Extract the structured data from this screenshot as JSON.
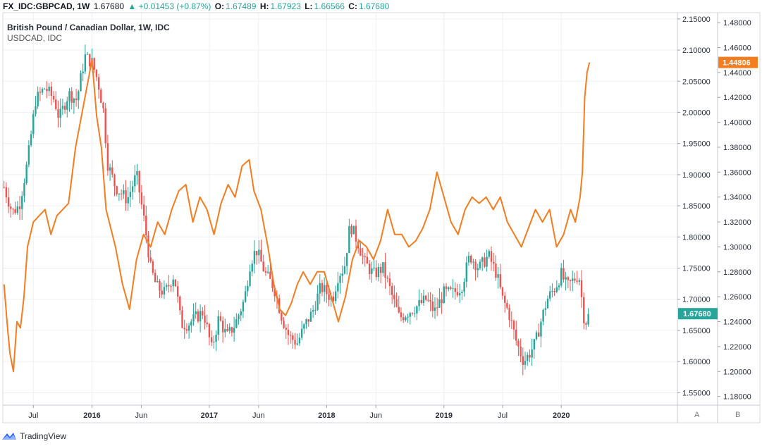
{
  "header": {
    "symbol": "FX_IDC:GBPCAD, 1W",
    "last": "1.67680",
    "change": "▲ +0.01453 (+0.87%)",
    "o_label": "O:",
    "o_value": "1.67489",
    "h_label": "H:",
    "h_value": "1.67923",
    "l_label": "L:",
    "l_value": "1.66566",
    "c_label": "C:",
    "c_value": "1.67680"
  },
  "legend": {
    "main": "British Pound / Canadian Dollar, 1W, IDC",
    "overlay": "USDCAD, IDC"
  },
  "axis_buttons": {
    "a": "A",
    "b": "B"
  },
  "footer": {
    "brand": "TradingView"
  },
  "colors": {
    "up": "#26a69a",
    "down": "#ef5350",
    "line": "#f57c1f",
    "grid": "#eef0f4",
    "border": "#c8cbd2"
  },
  "chart_data": {
    "type": "candlestick+line",
    "title": "British Pound / Canadian Dollar, 1W, IDC",
    "primary_series": {
      "name": "GBPCAD",
      "scale": "right-inner",
      "ylim": [
        1.53,
        2.16
      ],
      "yticks": [
        "2.15000",
        "2.10000",
        "2.05000",
        "2.00000",
        "1.95000",
        "1.90000",
        "1.85000",
        "1.80000",
        "1.75000",
        "1.70000",
        "1.65000",
        "1.60000",
        "1.55000"
      ],
      "last_value": "1.67680",
      "path_points": [
        [
          2015.25,
          1.88
        ],
        [
          2015.32,
          1.84
        ],
        [
          2015.38,
          1.85
        ],
        [
          2015.45,
          1.92
        ],
        [
          2015.52,
          2.02
        ],
        [
          2015.6,
          2.04
        ],
        [
          2015.68,
          2.02
        ],
        [
          2015.72,
          1.99
        ],
        [
          2015.8,
          2.03
        ],
        [
          2015.87,
          2.02
        ],
        [
          2015.94,
          2.09
        ],
        [
          2016.0,
          2.08
        ],
        [
          2016.05,
          2.05
        ],
        [
          2016.1,
          2.0
        ],
        [
          2016.13,
          1.92
        ],
        [
          2016.2,
          1.88
        ],
        [
          2016.3,
          1.86
        ],
        [
          2016.38,
          1.9
        ],
        [
          2016.45,
          1.82
        ],
        [
          2016.5,
          1.75
        ],
        [
          2016.55,
          1.72
        ],
        [
          2016.62,
          1.71
        ],
        [
          2016.7,
          1.74
        ],
        [
          2016.76,
          1.66
        ],
        [
          2016.82,
          1.66
        ],
        [
          2016.88,
          1.67
        ],
        [
          2016.95,
          1.68
        ],
        [
          2017.02,
          1.62
        ],
        [
          2017.08,
          1.67
        ],
        [
          2017.15,
          1.64
        ],
        [
          2017.22,
          1.66
        ],
        [
          2017.3,
          1.7
        ],
        [
          2017.35,
          1.76
        ],
        [
          2017.4,
          1.78
        ],
        [
          2017.48,
          1.74
        ],
        [
          2017.55,
          1.72
        ],
        [
          2017.62,
          1.67
        ],
        [
          2017.68,
          1.64
        ],
        [
          2017.75,
          1.63
        ],
        [
          2017.82,
          1.66
        ],
        [
          2017.88,
          1.68
        ],
        [
          2017.95,
          1.72
        ],
        [
          2018.0,
          1.71
        ],
        [
          2018.05,
          1.7
        ],
        [
          2018.1,
          1.74
        ],
        [
          2018.15,
          1.75
        ],
        [
          2018.2,
          1.82
        ],
        [
          2018.27,
          1.79
        ],
        [
          2018.32,
          1.76
        ],
        [
          2018.4,
          1.74
        ],
        [
          2018.48,
          1.75
        ],
        [
          2018.55,
          1.71
        ],
        [
          2018.62,
          1.67
        ],
        [
          2018.7,
          1.68
        ],
        [
          2018.78,
          1.69
        ],
        [
          2018.85,
          1.7
        ],
        [
          2018.92,
          1.68
        ],
        [
          2019.0,
          1.71
        ],
        [
          2019.08,
          1.71
        ],
        [
          2019.15,
          1.72
        ],
        [
          2019.22,
          1.77
        ],
        [
          2019.3,
          1.75
        ],
        [
          2019.38,
          1.77
        ],
        [
          2019.45,
          1.74
        ],
        [
          2019.5,
          1.7
        ],
        [
          2019.55,
          1.68
        ],
        [
          2019.62,
          1.63
        ],
        [
          2019.68,
          1.6
        ],
        [
          2019.72,
          1.61
        ],
        [
          2019.78,
          1.63
        ],
        [
          2019.82,
          1.66
        ],
        [
          2019.88,
          1.7
        ],
        [
          2019.95,
          1.72
        ],
        [
          2020.0,
          1.74
        ],
        [
          2020.05,
          1.72
        ],
        [
          2020.1,
          1.73
        ],
        [
          2020.15,
          1.74
        ],
        [
          2020.2,
          1.66
        ],
        [
          2020.24,
          1.6768
        ]
      ]
    },
    "overlay_series": {
      "name": "USDCAD",
      "scale": "right-outer",
      "ylim": [
        1.173,
        1.488
      ],
      "yticks": [
        "1.48000",
        "1.46000",
        "1.44000",
        "1.42000",
        "1.40000",
        "1.38000",
        "1.36000",
        "1.34000",
        "1.32000",
        "1.30000",
        "1.28000",
        "1.26000",
        "1.24000",
        "1.22000",
        "1.20000",
        "1.18000"
      ],
      "last_value": "1.44806",
      "points": [
        [
          2015.25,
          1.27
        ],
        [
          2015.28,
          1.235
        ],
        [
          2015.3,
          1.215
        ],
        [
          2015.33,
          1.2
        ],
        [
          2015.36,
          1.24
        ],
        [
          2015.39,
          1.235
        ],
        [
          2015.42,
          1.26
        ],
        [
          2015.45,
          1.3
        ],
        [
          2015.5,
          1.32
        ],
        [
          2015.55,
          1.325
        ],
        [
          2015.6,
          1.33
        ],
        [
          2015.65,
          1.31
        ],
        [
          2015.7,
          1.325
        ],
        [
          2015.75,
          1.33
        ],
        [
          2015.8,
          1.335
        ],
        [
          2015.86,
          1.38
        ],
        [
          2015.92,
          1.41
        ],
        [
          2016.0,
          1.45
        ],
        [
          2016.04,
          1.405
        ],
        [
          2016.08,
          1.38
        ],
        [
          2016.12,
          1.33
        ],
        [
          2016.2,
          1.3
        ],
        [
          2016.26,
          1.27
        ],
        [
          2016.32,
          1.25
        ],
        [
          2016.38,
          1.29
        ],
        [
          2016.44,
          1.31
        ],
        [
          2016.5,
          1.3
        ],
        [
          2016.56,
          1.32
        ],
        [
          2016.62,
          1.31
        ],
        [
          2016.68,
          1.33
        ],
        [
          2016.74,
          1.345
        ],
        [
          2016.8,
          1.35
        ],
        [
          2016.86,
          1.32
        ],
        [
          2016.92,
          1.34
        ],
        [
          2016.98,
          1.33
        ],
        [
          2017.04,
          1.31
        ],
        [
          2017.1,
          1.335
        ],
        [
          2017.16,
          1.35
        ],
        [
          2017.22,
          1.34
        ],
        [
          2017.28,
          1.365
        ],
        [
          2017.34,
          1.37
        ],
        [
          2017.38,
          1.345
        ],
        [
          2017.44,
          1.33
        ],
        [
          2017.5,
          1.3
        ],
        [
          2017.55,
          1.27
        ],
        [
          2017.6,
          1.25
        ],
        [
          2017.65,
          1.245
        ],
        [
          2017.7,
          1.255
        ],
        [
          2017.75,
          1.27
        ],
        [
          2017.8,
          1.28
        ],
        [
          2017.86,
          1.27
        ],
        [
          2017.92,
          1.28
        ],
        [
          2017.98,
          1.28
        ],
        [
          2018.04,
          1.26
        ],
        [
          2018.1,
          1.24
        ],
        [
          2018.16,
          1.26
        ],
        [
          2018.22,
          1.29
        ],
        [
          2018.28,
          1.305
        ],
        [
          2018.34,
          1.3
        ],
        [
          2018.4,
          1.29
        ],
        [
          2018.46,
          1.305
        ],
        [
          2018.52,
          1.33
        ],
        [
          2018.58,
          1.31
        ],
        [
          2018.64,
          1.31
        ],
        [
          2018.7,
          1.3
        ],
        [
          2018.76,
          1.305
        ],
        [
          2018.82,
          1.315
        ],
        [
          2018.88,
          1.33
        ],
        [
          2018.94,
          1.36
        ],
        [
          2019.0,
          1.34
        ],
        [
          2019.06,
          1.32
        ],
        [
          2019.12,
          1.31
        ],
        [
          2019.18,
          1.33
        ],
        [
          2019.24,
          1.34
        ],
        [
          2019.3,
          1.335
        ],
        [
          2019.36,
          1.34
        ],
        [
          2019.42,
          1.33
        ],
        [
          2019.48,
          1.34
        ],
        [
          2019.54,
          1.32
        ],
        [
          2019.6,
          1.31
        ],
        [
          2019.66,
          1.3
        ],
        [
          2019.72,
          1.315
        ],
        [
          2019.78,
          1.33
        ],
        [
          2019.84,
          1.32
        ],
        [
          2019.9,
          1.33
        ],
        [
          2019.96,
          1.3
        ],
        [
          2020.02,
          1.31
        ],
        [
          2020.08,
          1.33
        ],
        [
          2020.12,
          1.32
        ],
        [
          2020.16,
          1.34
        ],
        [
          2020.18,
          1.36
        ],
        [
          2020.2,
          1.42
        ],
        [
          2020.22,
          1.44
        ],
        [
          2020.24,
          1.448
        ]
      ]
    },
    "x_axis": {
      "xlim": [
        2015.24,
        2020.99
      ],
      "ticks": [
        {
          "label": "Jul",
          "value": 2015.5,
          "bold": false
        },
        {
          "label": "2016",
          "value": 2016.0,
          "bold": true
        },
        {
          "label": "Jun",
          "value": 2016.42,
          "bold": false
        },
        {
          "label": "2017",
          "value": 2017.0,
          "bold": true
        },
        {
          "label": "Jun",
          "value": 2017.42,
          "bold": false
        },
        {
          "label": "2018",
          "value": 2018.0,
          "bold": true
        },
        {
          "label": "Jun",
          "value": 2018.42,
          "bold": false
        },
        {
          "label": "2019",
          "value": 2019.0,
          "bold": true
        },
        {
          "label": "Jul",
          "value": 2019.5,
          "bold": false
        },
        {
          "label": "2020",
          "value": 2020.0,
          "bold": true
        }
      ]
    }
  }
}
